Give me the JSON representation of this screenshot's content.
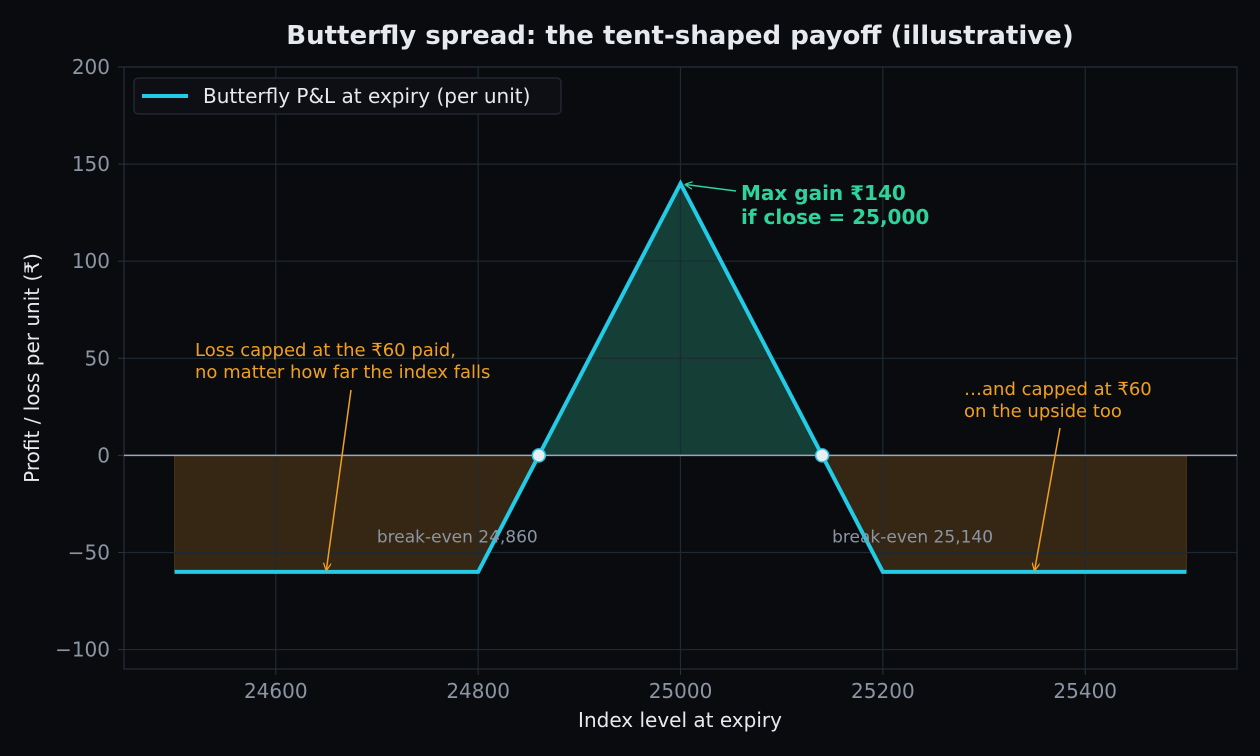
{
  "chart_data": {
    "type": "line",
    "title": "Butterfly spread: the tent-shaped payoff (illustrative)",
    "xlabel": "Index level at expiry",
    "ylabel": "Profit / loss per unit (₹)",
    "xlim": [
      24450,
      25550
    ],
    "ylim": [
      -110,
      200
    ],
    "xticks": [
      24600,
      24800,
      25000,
      25200,
      25400
    ],
    "yticks": [
      200,
      150,
      100,
      50,
      0,
      -50,
      -100
    ],
    "xtick_labels": [
      "24600",
      "24800",
      "25000",
      "25200",
      "25400"
    ],
    "ytick_labels": [
      "200",
      "150",
      "100",
      "50",
      "0",
      "−50",
      "−100"
    ],
    "grid": true,
    "legend_position": "top-left",
    "series": [
      {
        "name": "Butterfly P&L at expiry (per unit)",
        "x": [
          24500,
          24800,
          24860,
          25000,
          25140,
          25200,
          25500
        ],
        "y": [
          -60,
          -60,
          0,
          140,
          0,
          -60,
          -60
        ]
      }
    ],
    "break_even_points": [
      {
        "x": 24860,
        "y": 0,
        "label": "break-even 24,860"
      },
      {
        "x": 25140,
        "y": 0,
        "label": "break-even 25,140"
      }
    ],
    "annotations": [
      {
        "lines": [
          "Max gain ₹140",
          "if close = 25,000"
        ],
        "target": [
          25000,
          140
        ]
      },
      {
        "lines": [
          "Loss capped at the ₹60 paid,",
          "no matter how far the index falls"
        ],
        "target": [
          24650,
          -58
        ]
      },
      {
        "lines": [
          "…and capped at ₹60",
          "on the upside too"
        ],
        "target": [
          25350,
          -58
        ]
      }
    ],
    "colors": {
      "background": "#0a0b0f",
      "line": "#22cbe6",
      "profit_fill": "#143e36",
      "loss_fill": "#352713",
      "gain_text": "#2fd39a",
      "loss_text": "#f0a020",
      "grid": "#1e2a33",
      "axis_text": "#8b95a3",
      "label_text": "#e6e9ee",
      "breakeven_text": "#8b95a3",
      "zero_line": "#9aa8bd"
    }
  }
}
